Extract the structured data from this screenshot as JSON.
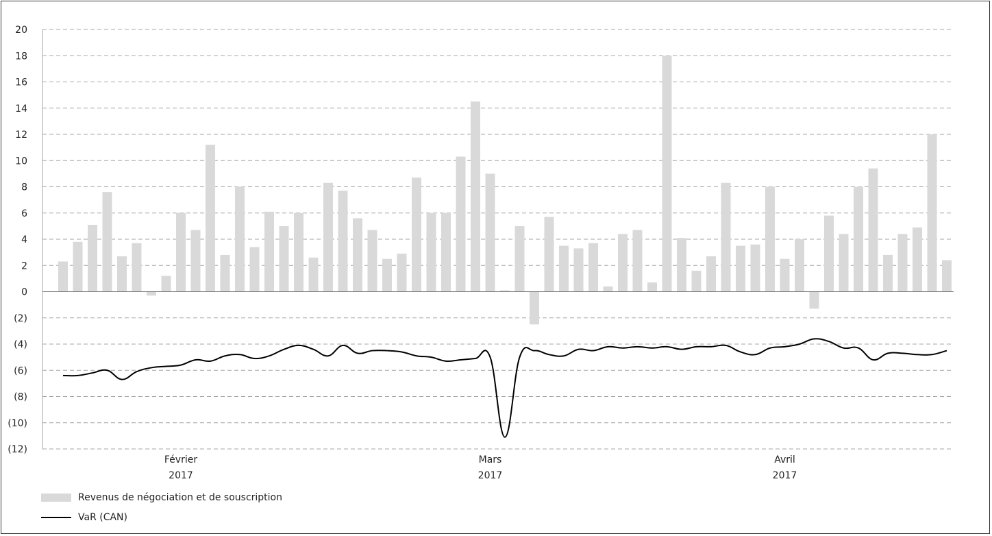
{
  "chart_data": {
    "type": "bar",
    "title": "",
    "xlabel": "",
    "ylabel": "",
    "ylim": [
      -12,
      20
    ],
    "yticks": [
      20,
      18,
      16,
      14,
      12,
      10,
      8,
      6,
      4,
      2,
      0,
      -2,
      -4,
      -6,
      -8,
      -10,
      -12
    ],
    "ytick_labels": [
      "20",
      "18",
      "16",
      "14",
      "12",
      "10",
      "8",
      "6",
      "4",
      "2",
      "0",
      "(2)",
      "(4)",
      "(6)",
      "(8)",
      "(10)",
      "(12)"
    ],
    "grid": true,
    "x_month_labels": [
      {
        "index": 8,
        "month": "Février",
        "year": "2017"
      },
      {
        "index": 29,
        "month": "Mars",
        "year": "2017"
      },
      {
        "index": 49,
        "month": "Avril",
        "year": "2017"
      }
    ],
    "series": [
      {
        "name": "Revenus de négociation et de souscription",
        "type": "bar",
        "color": "#d9d9d9",
        "values": [
          2.3,
          3.8,
          5.1,
          7.6,
          2.7,
          3.7,
          -0.3,
          1.2,
          6.0,
          4.7,
          11.2,
          2.8,
          8.0,
          3.4,
          6.1,
          5.0,
          6.0,
          2.6,
          8.3,
          7.7,
          5.6,
          4.7,
          2.5,
          2.9,
          8.7,
          6.0,
          6.0,
          10.3,
          14.5,
          9.0,
          0.1,
          5.0,
          -2.5,
          5.7,
          3.5,
          3.3,
          3.7,
          0.4,
          4.4,
          4.7,
          0.7,
          18.0,
          4.1,
          1.6,
          2.7,
          8.3,
          3.5,
          3.6,
          8.0,
          2.5,
          4.0,
          -1.3,
          5.8,
          4.4,
          8.0,
          9.4,
          2.8,
          4.4,
          4.9,
          12.0,
          2.4
        ]
      },
      {
        "name": "VaR (CAN)",
        "type": "line",
        "color": "#000000",
        "values": [
          -6.4,
          -6.4,
          -6.2,
          -6.0,
          -6.7,
          -6.1,
          -5.8,
          -5.7,
          -5.6,
          -5.2,
          -5.3,
          -4.9,
          -4.8,
          -5.1,
          -4.9,
          -4.4,
          -4.1,
          -4.4,
          -4.9,
          -4.1,
          -4.7,
          -4.5,
          -4.5,
          -4.6,
          -4.9,
          -5.0,
          -5.3,
          -5.2,
          -5.1,
          -5.0,
          -11.1,
          -5.0,
          -4.5,
          -4.8,
          -4.9,
          -4.4,
          -4.5,
          -4.2,
          -4.3,
          -4.2,
          -4.3,
          -4.2,
          -4.4,
          -4.2,
          -4.2,
          -4.1,
          -4.6,
          -4.8,
          -4.3,
          -4.2,
          -4.0,
          -3.6,
          -3.8,
          -4.3,
          -4.3,
          -5.2,
          -4.7,
          -4.7,
          -4.8,
          -4.8,
          -4.5
        ]
      }
    ],
    "legend": {
      "position": "bottom-left",
      "entries": [
        "Revenus de négociation et de souscription",
        "VaR (CAN)"
      ]
    }
  }
}
